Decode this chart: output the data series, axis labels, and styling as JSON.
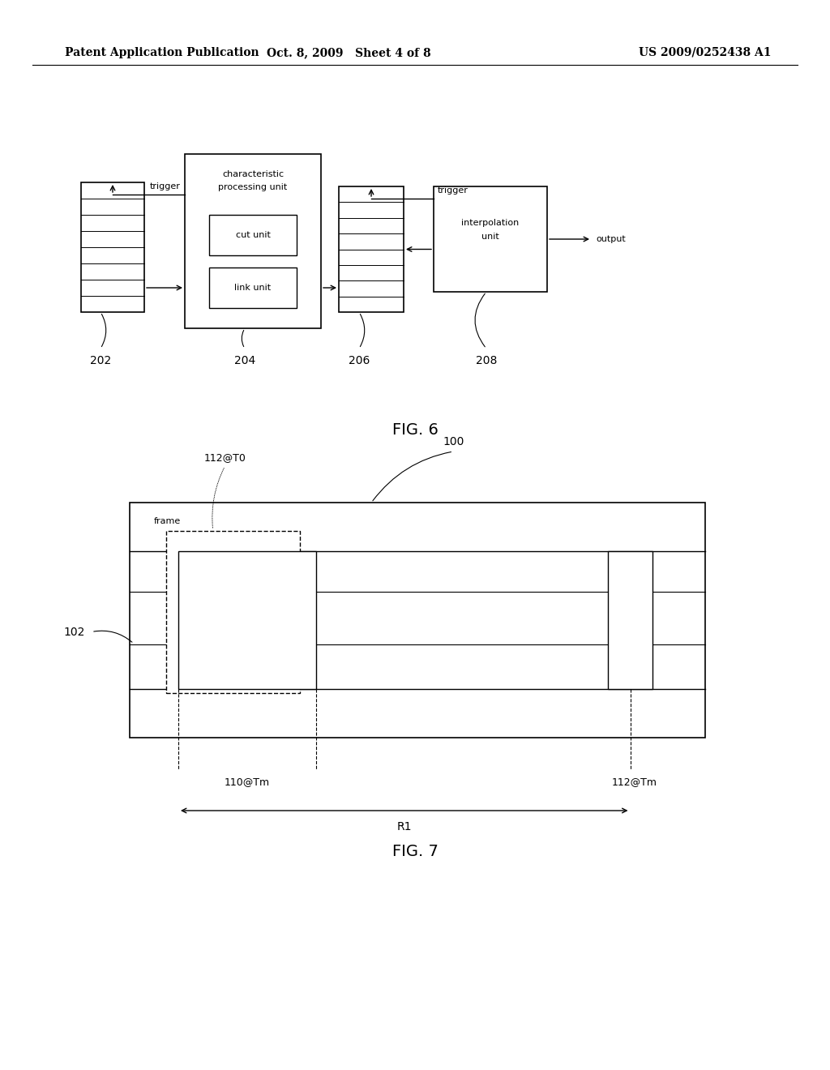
{
  "bg_color": "#ffffff",
  "header_left": "Patent Application Publication",
  "header_mid": "Oct. 8, 2009   Sheet 4 of 8",
  "header_right": "US 2009/0252438 A1",
  "fig6_label": "FIG. 6",
  "fig7_label": "FIG. 7"
}
